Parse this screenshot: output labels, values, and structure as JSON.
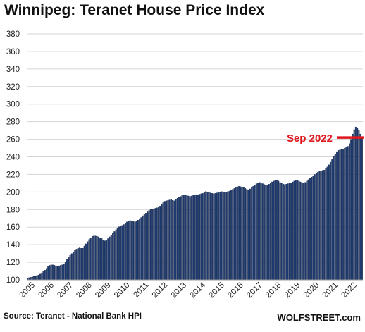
{
  "chart_data": {
    "type": "bar",
    "title": "Winnipeg: Teranet House Price Index",
    "xlabel": "",
    "ylabel": "",
    "ylim": [
      100,
      380
    ],
    "yticks": [
      100,
      120,
      140,
      160,
      180,
      200,
      220,
      240,
      260,
      280,
      300,
      320,
      340,
      360,
      380
    ],
    "xticks": [
      "2005",
      "2006",
      "2007",
      "2008",
      "2009",
      "2010",
      "2011",
      "2012",
      "2013",
      "2014",
      "2015",
      "2016",
      "2017",
      "2018",
      "2019",
      "2020",
      "2021",
      "2022"
    ],
    "grid": true,
    "frequency": "monthly",
    "start": "2005-01",
    "end": "2022-09",
    "bar_color": "#1f3a6e",
    "annotation": {
      "text": "Sep 2022",
      "value": 262,
      "color": "#e0161d"
    },
    "values": [
      102.0,
      102.5,
      103.0,
      103.5,
      104.0,
      104.5,
      105.0,
      105.5,
      106.5,
      108.0,
      109.5,
      111.0,
      113.0,
      115.0,
      116.5,
      117.0,
      117.0,
      116.5,
      116.0,
      115.5,
      116.0,
      116.5,
      117.0,
      118.0,
      120.5,
      123.0,
      125.5,
      128.0,
      130.0,
      132.0,
      133.5,
      135.0,
      136.0,
      136.5,
      136.0,
      136.0,
      138.5,
      141.0,
      143.5,
      146.0,
      148.0,
      149.5,
      150.0,
      150.0,
      149.5,
      149.0,
      148.0,
      147.0,
      145.5,
      144.5,
      145.5,
      147.0,
      149.0,
      151.0,
      153.0,
      155.0,
      157.0,
      159.0,
      160.5,
      161.5,
      162.0,
      163.0,
      164.5,
      166.0,
      167.0,
      167.5,
      167.0,
      166.5,
      166.0,
      166.5,
      168.0,
      169.5,
      171.0,
      173.0,
      174.5,
      176.0,
      177.5,
      179.0,
      180.0,
      180.5,
      181.0,
      181.5,
      182.0,
      182.5,
      184.0,
      186.0,
      188.0,
      189.5,
      190.0,
      190.5,
      191.0,
      191.5,
      190.5,
      190.0,
      191.5,
      193.0,
      194.0,
      195.0,
      196.0,
      196.5,
      196.5,
      196.0,
      195.5,
      195.0,
      195.5,
      196.0,
      196.5,
      197.0,
      197.0,
      197.5,
      198.0,
      198.5,
      199.5,
      200.5,
      200.0,
      199.5,
      199.0,
      198.5,
      198.0,
      198.5,
      199.0,
      199.5,
      200.0,
      200.5,
      200.0,
      199.5,
      200.0,
      200.5,
      201.0,
      202.0,
      203.0,
      204.0,
      205.0,
      206.0,
      206.5,
      206.0,
      205.5,
      205.0,
      204.0,
      203.0,
      202.5,
      203.5,
      205.0,
      206.5,
      208.0,
      209.5,
      210.5,
      211.0,
      210.5,
      209.5,
      208.5,
      207.5,
      208.0,
      209.0,
      210.5,
      211.5,
      212.5,
      213.0,
      213.5,
      212.5,
      211.0,
      210.0,
      209.0,
      208.5,
      209.0,
      209.5,
      210.0,
      210.5,
      211.5,
      212.5,
      213.0,
      213.5,
      212.5,
      211.5,
      210.5,
      210.0,
      211.0,
      212.5,
      214.0,
      215.5,
      217.0,
      218.5,
      220.0,
      221.5,
      222.5,
      223.5,
      224.0,
      224.5,
      225.0,
      226.5,
      228.5,
      231.0,
      234.0,
      237.0,
      240.5,
      243.5,
      246.0,
      247.5,
      248.0,
      248.5,
      249.0,
      250.0,
      251.0,
      252.0,
      255.0,
      260.0,
      266.0,
      271.0,
      274.0,
      273.0,
      270.0,
      266.0,
      262.0
    ]
  },
  "source": "Source: Teranet - National Bank HPI",
  "brand": "WOLFSTREET.com"
}
